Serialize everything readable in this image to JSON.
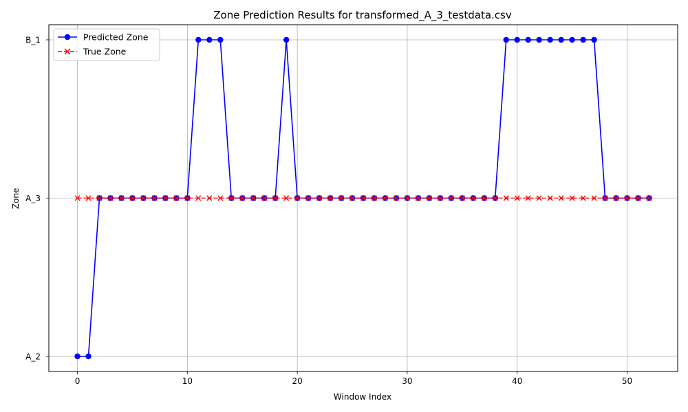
{
  "chart_data": {
    "type": "line",
    "title": "Zone Prediction Results for transformed_A_3_testdata.csv",
    "xlabel": "Window Index",
    "ylabel": "Zone",
    "xlim": [
      -2.6,
      54.6
    ],
    "x_ticks": [
      0,
      10,
      20,
      30,
      40,
      50
    ],
    "y_categories": [
      "A_2",
      "A_3",
      "B_1"
    ],
    "grid": true,
    "legend_position": "top-left",
    "x": [
      0,
      1,
      2,
      3,
      4,
      5,
      6,
      7,
      8,
      9,
      10,
      11,
      12,
      13,
      14,
      15,
      16,
      17,
      18,
      19,
      20,
      21,
      22,
      23,
      24,
      25,
      26,
      27,
      28,
      29,
      30,
      31,
      32,
      33,
      34,
      35,
      36,
      37,
      38,
      39,
      40,
      41,
      42,
      43,
      44,
      45,
      46,
      47,
      48,
      49,
      50,
      51,
      52
    ],
    "series": [
      {
        "name": "Predicted Zone",
        "color": "#0000ff",
        "marker": "circle",
        "line_style": "solid",
        "values": [
          "A_2",
          "A_2",
          "A_3",
          "A_3",
          "A_3",
          "A_3",
          "A_3",
          "A_3",
          "A_3",
          "A_3",
          "A_3",
          "B_1",
          "B_1",
          "B_1",
          "A_3",
          "A_3",
          "A_3",
          "A_3",
          "A_3",
          "B_1",
          "A_3",
          "A_3",
          "A_3",
          "A_3",
          "A_3",
          "A_3",
          "A_3",
          "A_3",
          "A_3",
          "A_3",
          "A_3",
          "A_3",
          "A_3",
          "A_3",
          "A_3",
          "A_3",
          "A_3",
          "A_3",
          "A_3",
          "B_1",
          "B_1",
          "B_1",
          "B_1",
          "B_1",
          "B_1",
          "B_1",
          "B_1",
          "B_1",
          "A_3",
          "A_3",
          "A_3",
          "A_3",
          "A_3"
        ]
      },
      {
        "name": "True Zone",
        "color": "#ff0000",
        "marker": "x",
        "line_style": "dashed",
        "values": [
          "A_3",
          "A_3",
          "A_3",
          "A_3",
          "A_3",
          "A_3",
          "A_3",
          "A_3",
          "A_3",
          "A_3",
          "A_3",
          "A_3",
          "A_3",
          "A_3",
          "A_3",
          "A_3",
          "A_3",
          "A_3",
          "A_3",
          "A_3",
          "A_3",
          "A_3",
          "A_3",
          "A_3",
          "A_3",
          "A_3",
          "A_3",
          "A_3",
          "A_3",
          "A_3",
          "A_3",
          "A_3",
          "A_3",
          "A_3",
          "A_3",
          "A_3",
          "A_3",
          "A_3",
          "A_3",
          "A_3",
          "A_3",
          "A_3",
          "A_3",
          "A_3",
          "A_3",
          "A_3",
          "A_3",
          "A_3",
          "A_3",
          "A_3",
          "A_3",
          "A_3",
          "A_3"
        ]
      }
    ]
  }
}
